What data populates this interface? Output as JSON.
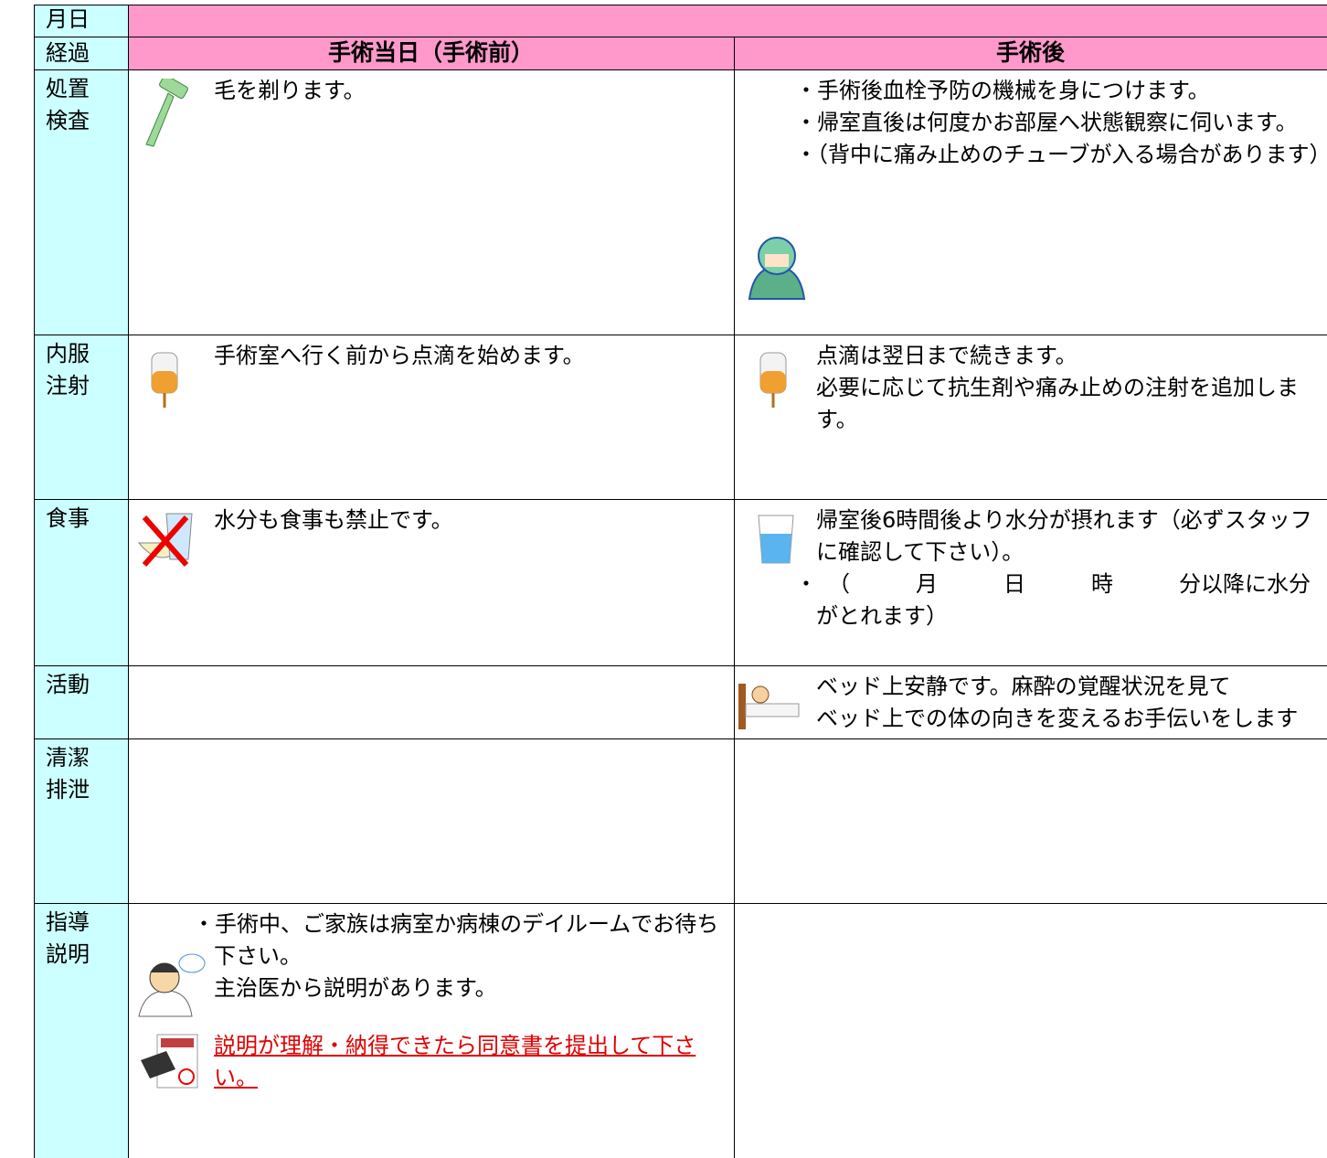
{
  "header": {
    "date_label": "月日",
    "progress_label": "経過",
    "columns": [
      "手術当日（手術前）",
      "手術後"
    ]
  },
  "rows": [
    {
      "label": [
        "処置",
        "検査"
      ],
      "before": [
        "毛を剃ります。"
      ],
      "after": [
        "・手術後血栓予防の機械を身につけます。",
        "・帰室直後は何度かお部屋へ状態観察に伺います。",
        "・（背中に痛み止めのチューブが入る場合があります）"
      ]
    },
    {
      "label": [
        "内服",
        "注射"
      ],
      "before": [
        "手術室へ行く前から点滴を始めます。"
      ],
      "after": [
        "点滴は翌日まで続きます。",
        "必要に応じて抗生剤や痛み止めの注射を追加します。"
      ]
    },
    {
      "label": [
        "食事"
      ],
      "before": [
        "水分も食事も禁止です。"
      ],
      "after": [
        "帰室後6時間後より水分が摂れます（必ずスタッフに確認して下さい）。",
        "・　（　　　月　　　日　　　時　　　分以降に水分がとれます）"
      ]
    },
    {
      "label": [
        "活動"
      ],
      "after": [
        "ベッド上安静です。麻酔の覚醒状況を見て",
        "ベッド上での体の向きを変えるお手伝いをします"
      ]
    },
    {
      "label": [
        "清潔",
        "排泄"
      ]
    },
    {
      "label": [
        "指導",
        "説明"
      ],
      "before": [
        "・手術中、ご家族は病室か病棟のデイルームでお待ち下さい。",
        "主治医から説明があります。"
      ],
      "notice": "説明が理解・納得できたら同意書を提出して下さい。"
    }
  ]
}
